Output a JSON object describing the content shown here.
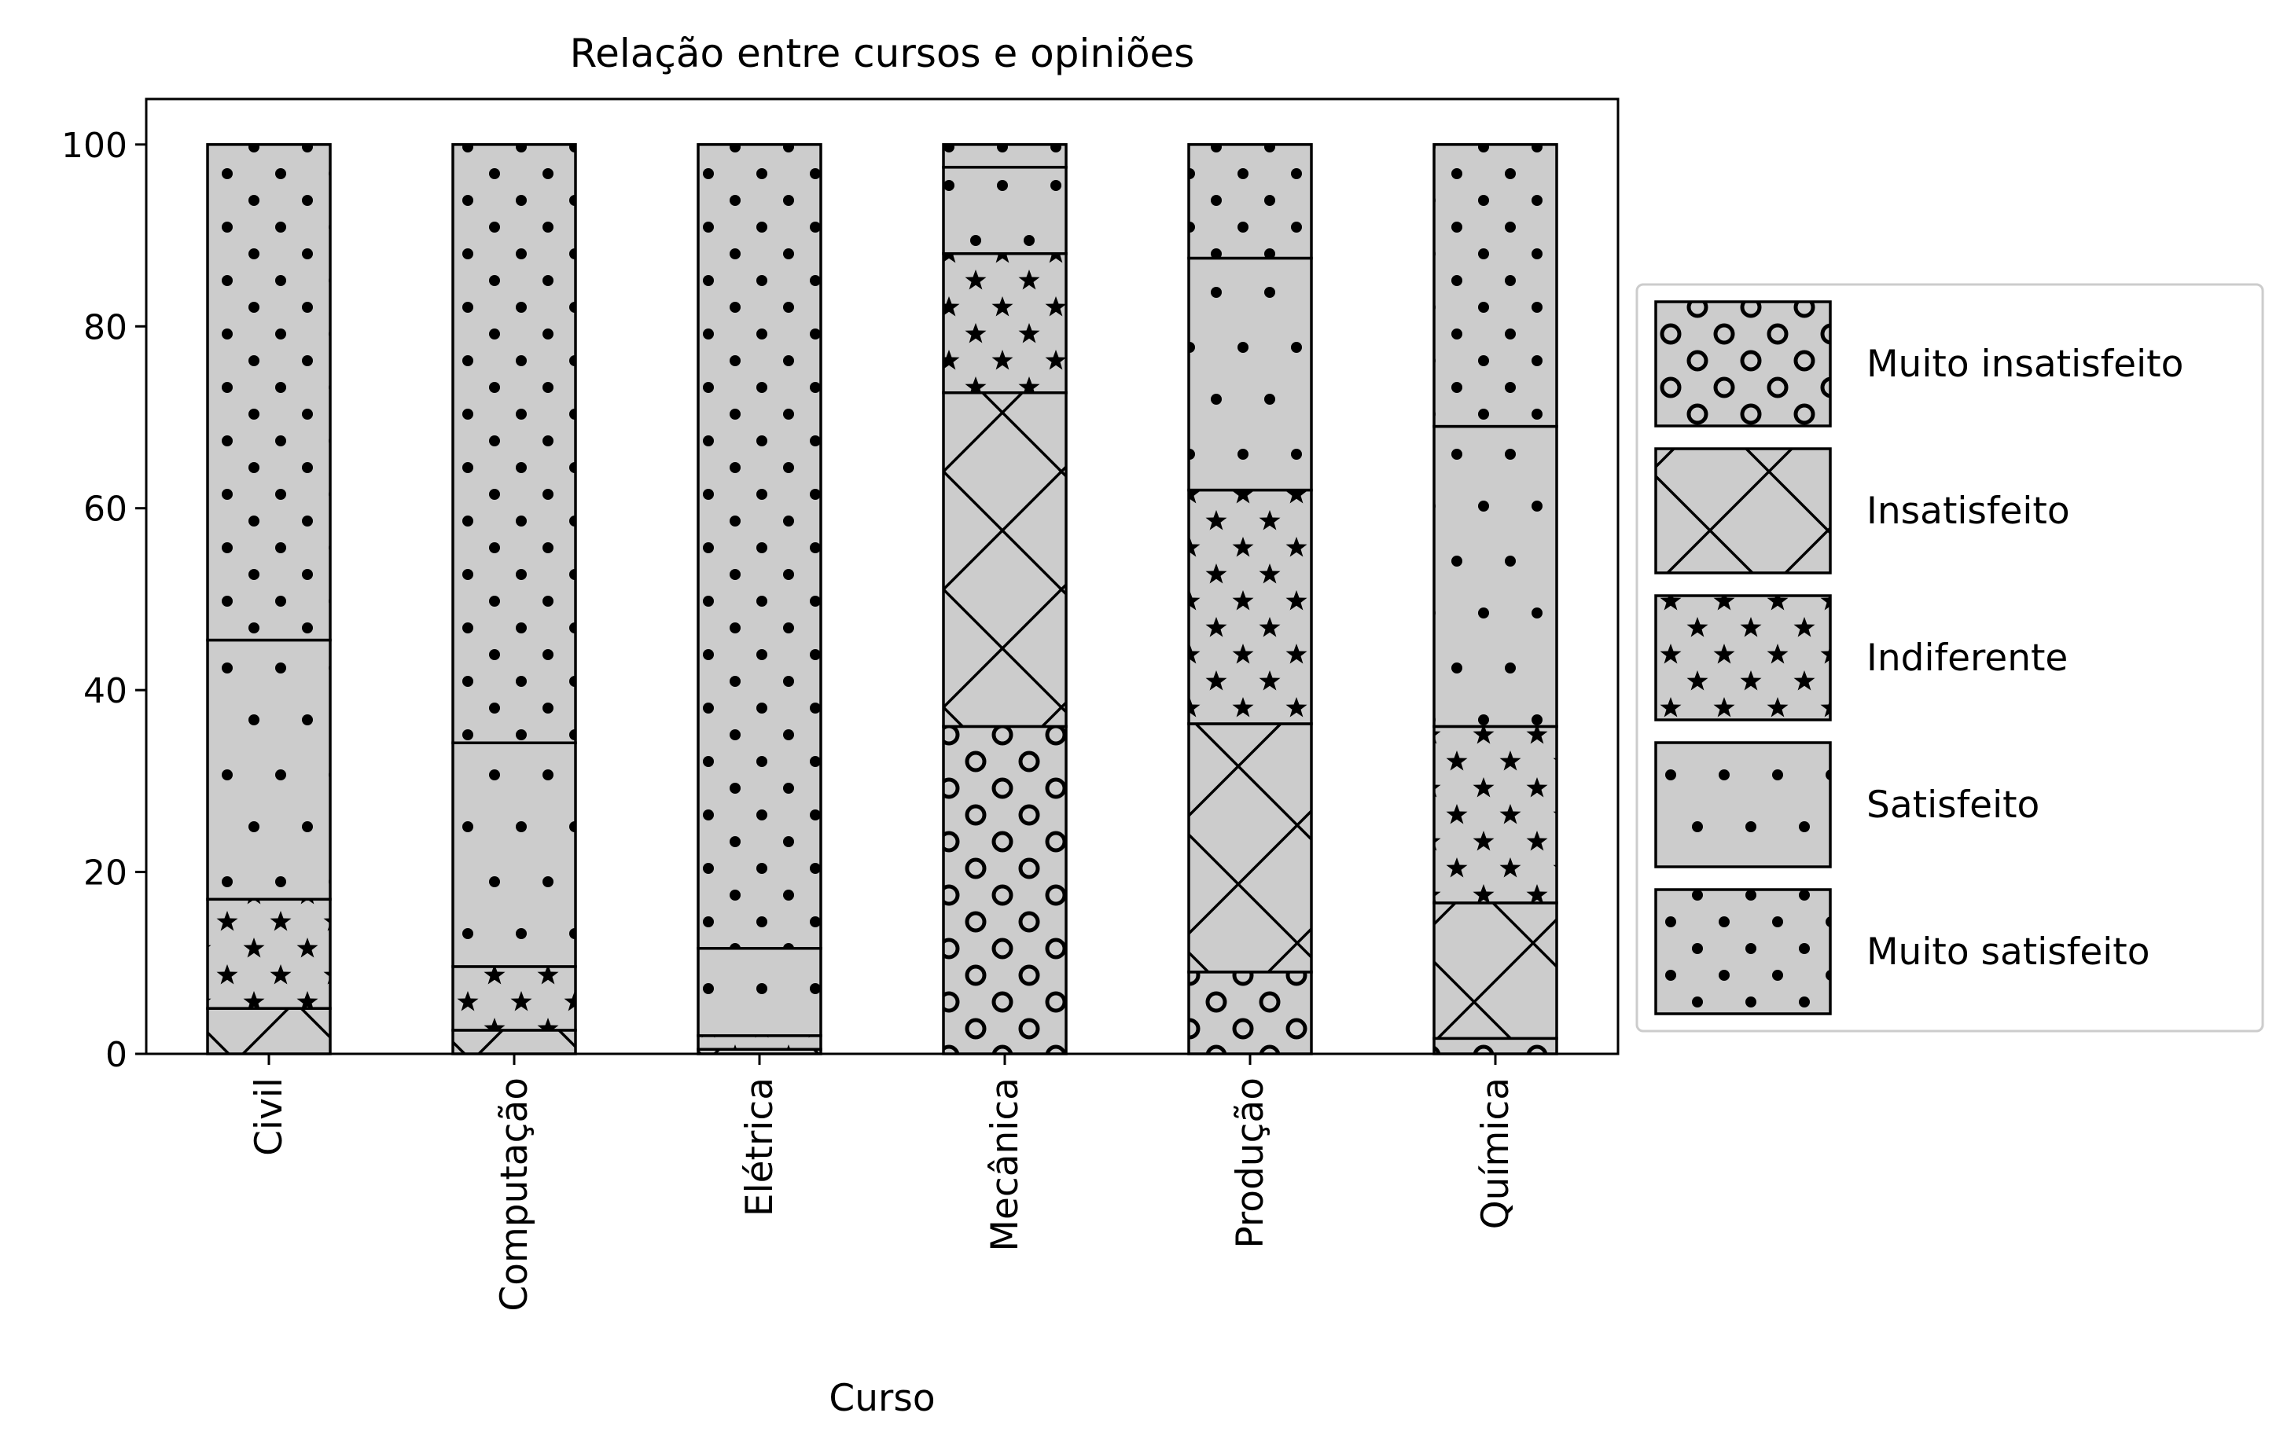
{
  "chart_data": {
    "type": "bar",
    "stacked": true,
    "title": "Relação entre cursos e opiniões",
    "xlabel": "Curso",
    "ylabel": "",
    "ylim": [
      0,
      105
    ],
    "yticks": [
      0,
      20,
      40,
      60,
      80,
      100
    ],
    "categories": [
      "Civil",
      "Computação",
      "Elétrica",
      "Mecânica",
      "Produção",
      "Química"
    ],
    "series": [
      {
        "name": "Muito insatisfeito",
        "pattern": "circles",
        "values": [
          0.0,
          0.0,
          0.0,
          36.0,
          9.0,
          1.7
        ]
      },
      {
        "name": "Insatisfeito",
        "pattern": "crosshatch",
        "values": [
          5.0,
          2.6,
          0.5,
          36.7,
          27.3,
          14.9
        ]
      },
      {
        "name": "Indiferente",
        "pattern": "stars",
        "values": [
          12.0,
          7.0,
          1.5,
          15.3,
          25.7,
          19.4
        ]
      },
      {
        "name": "Satisfeito",
        "pattern": "dots-sparse",
        "values": [
          28.5,
          24.6,
          9.6,
          9.5,
          25.5,
          33.0
        ]
      },
      {
        "name": "Muito satisfeito",
        "pattern": "dots-dense",
        "values": [
          54.5,
          65.8,
          88.4,
          2.5,
          12.5,
          31.0
        ]
      }
    ],
    "colors": {
      "fill": "#cccccc",
      "edge": "#000000",
      "hatch": "#000000"
    },
    "legend": {
      "placement": "right",
      "order": [
        "Muito insatisfeito",
        "Insatisfeito",
        "Indiferente",
        "Satisfeito",
        "Muito satisfeito"
      ]
    },
    "grid": false
  }
}
